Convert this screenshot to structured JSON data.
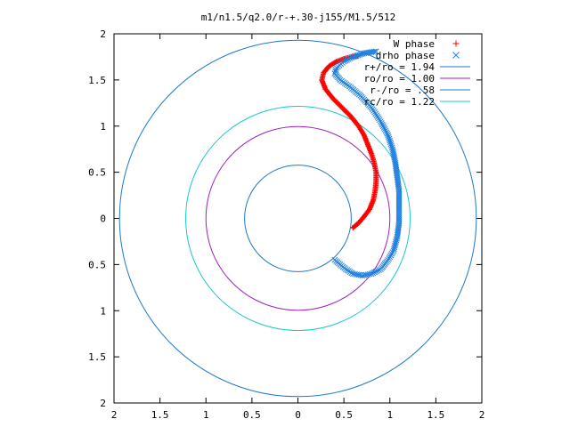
{
  "chart_data": {
    "type": "scatter",
    "title": "m1/n1.5/q2.0/r-+.30-j155/M1.5/512",
    "xlim": [
      -2,
      2
    ],
    "ylim": [
      -2,
      2
    ],
    "x_ticks": [
      {
        "value": -2,
        "label": "2"
      },
      {
        "value": -1.5,
        "label": "1.5"
      },
      {
        "value": -1,
        "label": "1"
      },
      {
        "value": -0.5,
        "label": "0.5"
      },
      {
        "value": 0,
        "label": "0"
      },
      {
        "value": 0.5,
        "label": "0.5"
      },
      {
        "value": 1,
        "label": "1"
      },
      {
        "value": 1.5,
        "label": "1.5"
      },
      {
        "value": 2,
        "label": "2"
      }
    ],
    "y_ticks": [
      {
        "value": 2,
        "label": "2"
      },
      {
        "value": 1.5,
        "label": "1.5"
      },
      {
        "value": 1,
        "label": "1"
      },
      {
        "value": 0.5,
        "label": "0.5"
      },
      {
        "value": 0,
        "label": "0"
      },
      {
        "value": -0.5,
        "label": "0.5"
      },
      {
        "value": -1,
        "label": "1"
      },
      {
        "value": -1.5,
        "label": "1.5"
      },
      {
        "value": -2,
        "label": "2"
      }
    ],
    "grid": false,
    "legend_position": "top-right",
    "series": [
      {
        "name": "W phase",
        "kind": "points",
        "marker": "plus",
        "color": "#ff0000",
        "points": [
          [
            0.6,
            -0.1
          ],
          [
            0.66,
            -0.05
          ],
          [
            0.72,
            0.02
          ],
          [
            0.78,
            0.1
          ],
          [
            0.82,
            0.2
          ],
          [
            0.84,
            0.3
          ],
          [
            0.85,
            0.4
          ],
          [
            0.85,
            0.5
          ],
          [
            0.83,
            0.6
          ],
          [
            0.8,
            0.7
          ],
          [
            0.76,
            0.8
          ],
          [
            0.72,
            0.9
          ],
          [
            0.66,
            1.0
          ],
          [
            0.58,
            1.1
          ],
          [
            0.48,
            1.2
          ],
          [
            0.38,
            1.3
          ],
          [
            0.3,
            1.4
          ],
          [
            0.26,
            1.5
          ],
          [
            0.28,
            1.58
          ],
          [
            0.34,
            1.65
          ],
          [
            0.42,
            1.7
          ],
          [
            0.5,
            1.73
          ],
          [
            0.58,
            1.75
          ],
          [
            0.65,
            1.76
          ]
        ]
      },
      {
        "name": "drho phase",
        "kind": "points",
        "marker": "cross",
        "color": "#1e7ee0",
        "points": [
          [
            0.4,
            -0.45
          ],
          [
            0.46,
            -0.5
          ],
          [
            0.52,
            -0.55
          ],
          [
            0.6,
            -0.6
          ],
          [
            0.7,
            -0.62
          ],
          [
            0.8,
            -0.6
          ],
          [
            0.9,
            -0.55
          ],
          [
            0.98,
            -0.45
          ],
          [
            1.04,
            -0.35
          ],
          [
            1.08,
            -0.2
          ],
          [
            1.1,
            -0.05
          ],
          [
            1.1,
            0.05
          ],
          [
            1.1,
            0.15
          ],
          [
            1.1,
            0.3
          ],
          [
            1.08,
            0.45
          ],
          [
            1.06,
            0.6
          ],
          [
            1.03,
            0.75
          ],
          [
            0.98,
            0.9
          ],
          [
            0.9,
            1.05
          ],
          [
            0.8,
            1.2
          ],
          [
            0.68,
            1.33
          ],
          [
            0.56,
            1.43
          ],
          [
            0.46,
            1.5
          ],
          [
            0.4,
            1.57
          ],
          [
            0.42,
            1.63
          ],
          [
            0.5,
            1.7
          ],
          [
            0.6,
            1.75
          ],
          [
            0.72,
            1.79
          ],
          [
            0.85,
            1.81
          ]
        ]
      },
      {
        "name": "r+/ro = 1.94",
        "kind": "circle",
        "radius": 1.94,
        "color": "#1f78c8"
      },
      {
        "name": "ro/ro = 1.00",
        "kind": "circle",
        "radius": 1.0,
        "color": "#a020c0"
      },
      {
        "name": "r-/ro = .58",
        "kind": "circle",
        "radius": 0.58,
        "color": "#1f78c8"
      },
      {
        "name": "rc/ro = 1.22",
        "kind": "circle",
        "radius": 1.22,
        "color": "#19c8cc"
      }
    ]
  }
}
